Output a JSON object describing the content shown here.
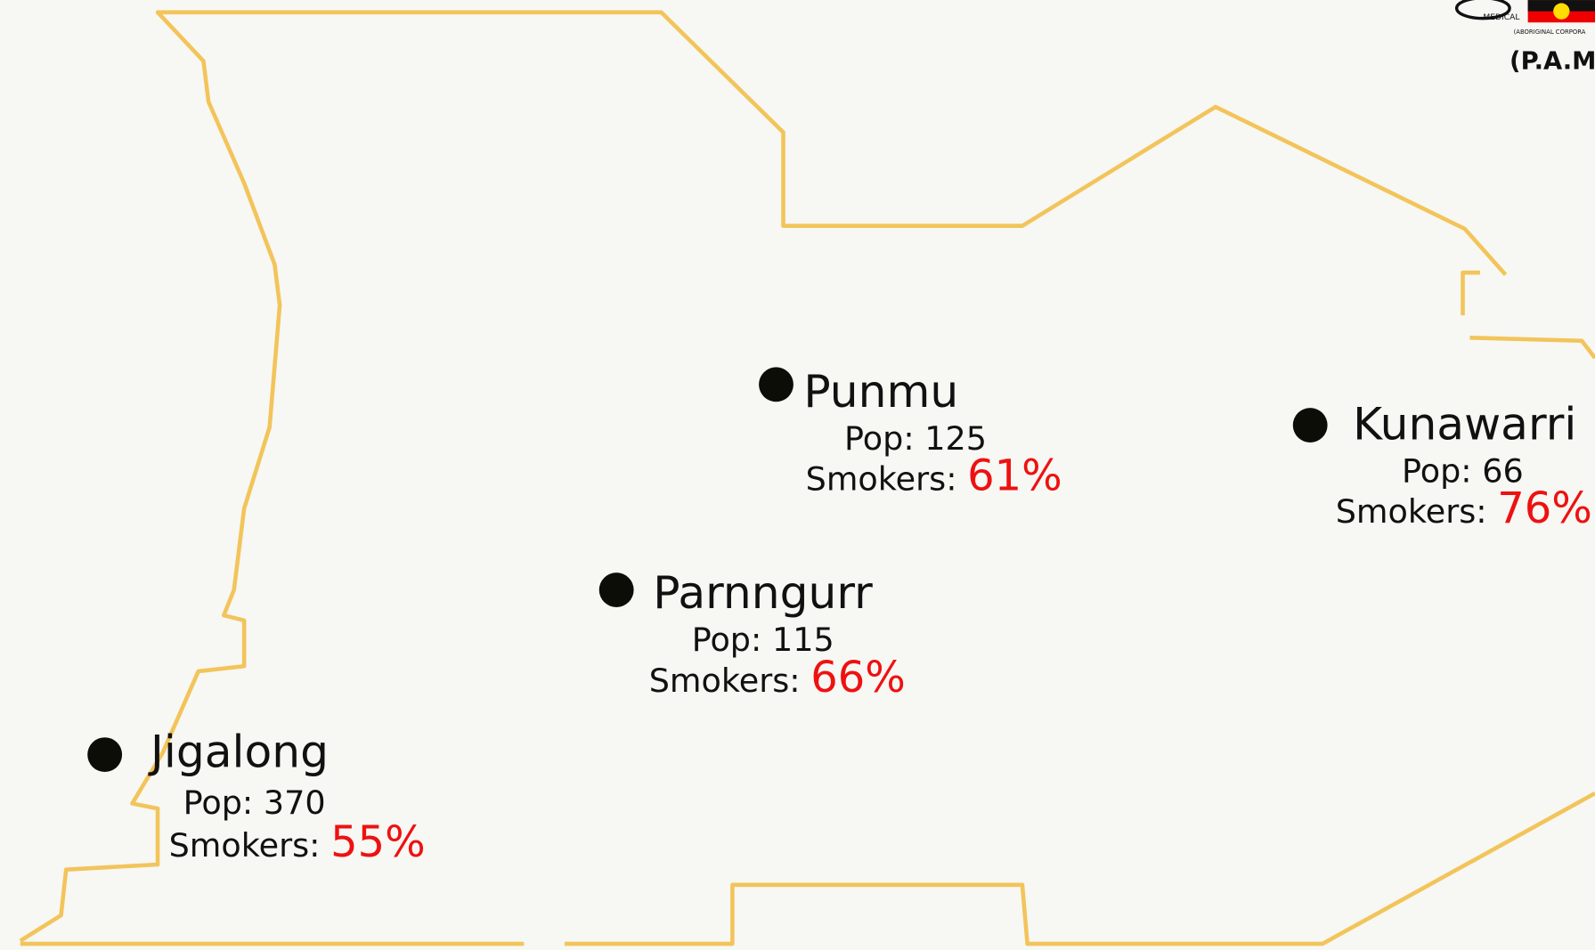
{
  "logo": {
    "line1": "MEDICAL",
    "line2": "(ABORIGINAL CORPORA",
    "acronym": "(P.A.M."
  },
  "places": [
    {
      "name": "Punmu",
      "pop_label": "Pop:",
      "pop": 125,
      "smokers_label": "Smokers:",
      "smokers": "61%"
    },
    {
      "name": "Kunawarri",
      "pop_label": "Pop:",
      "pop": 66,
      "smokers_label": "Smokers:",
      "smokers": "76%"
    },
    {
      "name": "Parnngurr",
      "pop_label": "Pop:",
      "pop": 115,
      "smokers_label": "Smokers:",
      "smokers": "66%"
    },
    {
      "name": "Jigalong",
      "pop_label": "Pop:",
      "pop": 370,
      "smokers_label": "Smokers:",
      "smokers": "55%"
    }
  ]
}
